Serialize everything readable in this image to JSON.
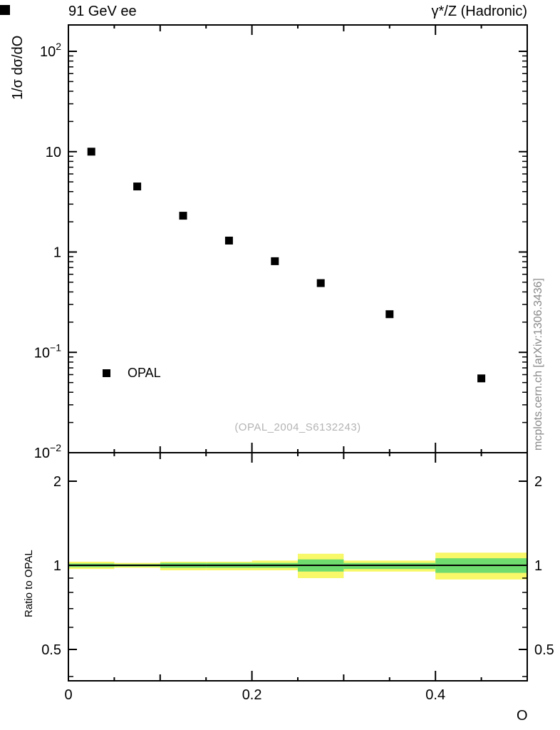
{
  "chart_data": {
    "type": "scatter",
    "title_left": "91 GeV ee",
    "title_right": "γ*/Z (Hadronic)",
    "xlabel": "O",
    "xlim": [
      0,
      0.5
    ],
    "xticks": {
      "values": [
        0,
        0.2,
        0.4
      ],
      "labels": [
        "0",
        "0.2",
        "0.4"
      ],
      "minor_step": 0.05
    },
    "main_panel": {
      "ylabel": "1/σ dσ/dO",
      "yscale": "log",
      "ylim": [
        0.01,
        100
      ],
      "yticks": {
        "values": [
          100,
          10,
          1,
          0.1,
          0.01
        ],
        "labels": [
          {
            "base": "10",
            "exp": "2"
          },
          {
            "base": "10",
            "exp": ""
          },
          {
            "base": "1",
            "exp": ""
          },
          {
            "base": "10",
            "exp": "−1"
          },
          {
            "base": "10",
            "exp": "−2"
          }
        ]
      },
      "watermark": "(OPAL_2004_S6132243)",
      "series": [
        {
          "name": "OPAL",
          "type": "scatter",
          "marker": "filled-square",
          "color": "#000000",
          "x": [
            0.025,
            0.075,
            0.125,
            0.175,
            0.225,
            0.275,
            0.35,
            0.45
          ],
          "y": [
            10,
            4.5,
            2.3,
            1.3,
            0.81,
            0.49,
            0.24,
            0.055
          ]
        }
      ]
    },
    "ratio_panel": {
      "ylabel": "Ratio to OPAL",
      "yscale": "log",
      "ylim": [
        0.39,
        2.53
      ],
      "reference_line": 1,
      "yticks": {
        "values": [
          2,
          1,
          0.5
        ],
        "labels": [
          "2",
          "1",
          "0.5"
        ],
        "minor": [
          0.4,
          0.6,
          0.7,
          0.8,
          0.9
        ]
      },
      "bands": {
        "bin_edges": [
          0,
          0.05,
          0.1,
          0.15,
          0.2,
          0.25,
          0.3,
          0.4,
          0.5
        ],
        "outer_color": "#f8f868",
        "inner_color": "#6fdc6f",
        "outer": [
          [
            0.97,
            1.03
          ],
          [
            0.98,
            1.02
          ],
          [
            0.96,
            1.03
          ],
          [
            0.96,
            1.03
          ],
          [
            0.96,
            1.04
          ],
          [
            0.9,
            1.1
          ],
          [
            0.95,
            1.04
          ],
          [
            0.89,
            1.11
          ]
        ],
        "inner": [
          [
            0.985,
            1.015
          ],
          [
            0.99,
            1.01
          ],
          [
            0.98,
            1.02
          ],
          [
            0.98,
            1.02
          ],
          [
            0.98,
            1.02
          ],
          [
            0.95,
            1.05
          ],
          [
            0.97,
            1.02
          ],
          [
            0.94,
            1.06
          ]
        ]
      }
    },
    "sidenote": "mcplots.cern.ch [arXiv:1306.3436]"
  }
}
